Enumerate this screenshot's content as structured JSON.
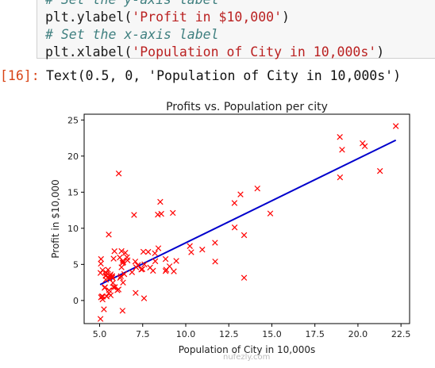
{
  "code": {
    "line1": "# Set the y-axis label",
    "line2_fn": "plt.ylabel(",
    "line2_str": "'Profit in $10,000'",
    "line2_end": ")",
    "line3": "# Set the x-axis label",
    "line4_fn": "plt.xlabel(",
    "line4_str": "'Population of City in 10,000s'",
    "line4_end": ")"
  },
  "output": {
    "prompt": "[16]:",
    "text": "Text(0.5, 0, 'Population of City in 10,000s')"
  },
  "watermark": "nufezly.com",
  "colors": {
    "points": "#ff0000",
    "line": "#0000cc"
  },
  "chart_data": {
    "type": "scatter",
    "title": "Profits vs. Population per city",
    "xlabel": "Population of City in 10,000s",
    "ylabel": "Profit in $10,000",
    "xlim": [
      4.1,
      23.0
    ],
    "ylim": [
      -3.2,
      25.8
    ],
    "xticks": [
      5.0,
      7.5,
      10.0,
      12.5,
      15.0,
      17.5,
      20.0,
      22.5
    ],
    "xtick_labels": [
      "5.0",
      "7.5",
      "10.0",
      "12.5",
      "15.0",
      "17.5",
      "20.0",
      "22.5"
    ],
    "yticks": [
      0,
      5,
      10,
      15,
      20,
      25
    ],
    "ytick_labels": [
      "0",
      "5",
      "10",
      "15",
      "20",
      "25"
    ],
    "grid": false,
    "legend": "none",
    "series": [
      {
        "kind": "points",
        "marker": "x",
        "x": [
          6.11,
          5.53,
          8.52,
          7.0,
          5.86,
          8.38,
          7.48,
          8.58,
          6.49,
          5.05,
          5.71,
          14.16,
          5.73,
          8.41,
          5.64,
          5.38,
          6.37,
          5.13,
          6.43,
          7.07,
          6.19,
          20.27,
          5.49,
          6.33,
          5.56,
          18.95,
          12.83,
          10.96,
          13.18,
          22.2,
          5.25,
          6.59,
          9.25,
          5.89,
          8.21,
          7.93,
          8.1,
          5.61,
          12.84,
          6.35,
          5.41,
          6.88,
          11.71,
          5.77,
          7.82,
          7.09,
          5.07,
          5.8,
          11.7,
          5.54,
          7.54,
          5.31,
          7.42,
          7.6,
          6.03,
          6.33,
          6.36,
          6.27,
          5.64,
          9.31,
          9.45,
          8.83,
          5.18,
          21.28,
          14.91,
          18.96,
          7.22,
          5.08,
          5.73,
          19.08,
          10.32,
          8.87,
          13.39,
          9.06,
          6.62,
          5.55,
          7.12,
          6.17,
          8.23,
          8.83,
          13.39,
          6.27,
          5.35,
          5.36,
          5.29,
          5.81,
          6.23,
          5.17,
          5.08,
          10.24,
          5.17,
          7.58,
          5.39,
          6.1,
          5.05,
          20.4
        ],
        "y": [
          17.59,
          9.13,
          13.66,
          11.85,
          6.82,
          11.89,
          4.35,
          12.0,
          6.6,
          3.82,
          3.25,
          15.51,
          3.16,
          7.23,
          0.72,
          3.51,
          5.3,
          0.56,
          3.65,
          5.39,
          3.14,
          21.77,
          4.26,
          5.19,
          3.08,
          22.64,
          13.5,
          7.05,
          14.69,
          24.15,
          -1.22,
          5.99,
          12.13,
          1.85,
          6.54,
          4.56,
          4.12,
          3.39,
          10.12,
          5.5,
          0.56,
          3.91,
          5.39,
          2.44,
          6.73,
          1.05,
          5.1,
          1.84,
          8.0,
          1.02,
          6.75,
          1.84,
          4.29,
          5.0,
          1.42,
          -1.42,
          2.48,
          4.6,
          3.62,
          4.04,
          5.48,
          5.74,
          0.55,
          17.93,
          12.05,
          17.05,
          4.89,
          5.74,
          3.39,
          20.88,
          6.68,
          4.26,
          9.05,
          4.73,
          5.56,
          1.42,
          4.6,
          5.96,
          5.44,
          4.08,
          3.15,
          6.84,
          3.39,
          2.88,
          1.75,
          5.79,
          3.37,
          0.15,
          0.44,
          7.54,
          4.2,
          0.3,
          3.82,
          1.53,
          -2.55,
          21.37
        ]
      },
      {
        "kind": "line",
        "x": [
          5.03,
          22.2
        ],
        "y": [
          2.2,
          22.2
        ]
      }
    ]
  }
}
